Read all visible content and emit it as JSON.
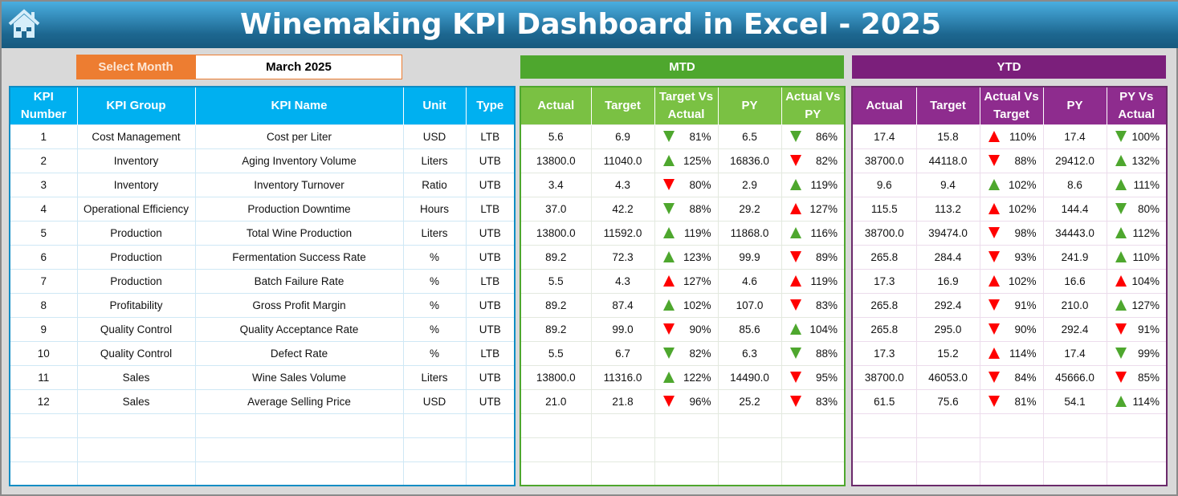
{
  "header": {
    "title": "Winemaking KPI Dashboard in Excel - 2025",
    "home_icon": "home-icon"
  },
  "selector": {
    "label": "Select Month",
    "value": "March 2025",
    "accent": "#ed7d31"
  },
  "sections": {
    "mtd": "MTD",
    "ytd": "YTD",
    "mtd_color": "#4ea72e",
    "ytd_color": "#7b1f7b",
    "kpi_color": "#00b0f0"
  },
  "columns": {
    "kpi": [
      "KPI Number",
      "KPI Group",
      "KPI Name",
      "Unit",
      "Type"
    ],
    "mtd": [
      "Actual",
      "Target",
      "Target Vs Actual",
      "PY",
      "Actual Vs PY"
    ],
    "ytd": [
      "Actual",
      "Target",
      "Actual Vs Target",
      "PY",
      "PY Vs Actual"
    ]
  },
  "colors": {
    "green": "#4ea72e",
    "red": "#ff0000"
  },
  "rows": [
    {
      "kpi": [
        "1",
        "Cost Management",
        "Cost per Liter",
        "USD",
        "LTB"
      ],
      "mtd": [
        "5.6",
        "6.9",
        {
          "dir": "down",
          "color": "green",
          "value": "81%"
        },
        "6.5",
        {
          "dir": "down",
          "color": "green",
          "value": "86%"
        }
      ],
      "ytd": [
        "17.4",
        "15.8",
        {
          "dir": "up",
          "color": "red",
          "value": "110%"
        },
        "17.4",
        {
          "dir": "down",
          "color": "green",
          "value": "100%"
        }
      ]
    },
    {
      "kpi": [
        "2",
        "Inventory",
        "Aging Inventory Volume",
        "Liters",
        "UTB"
      ],
      "mtd": [
        "13800.0",
        "11040.0",
        {
          "dir": "up",
          "color": "green",
          "value": "125%"
        },
        "16836.0",
        {
          "dir": "down",
          "color": "red",
          "value": "82%"
        }
      ],
      "ytd": [
        "38700.0",
        "44118.0",
        {
          "dir": "down",
          "color": "red",
          "value": "88%"
        },
        "29412.0",
        {
          "dir": "up",
          "color": "green",
          "value": "132%"
        }
      ]
    },
    {
      "kpi": [
        "3",
        "Inventory",
        "Inventory Turnover",
        "Ratio",
        "UTB"
      ],
      "mtd": [
        "3.4",
        "4.3",
        {
          "dir": "down",
          "color": "red",
          "value": "80%"
        },
        "2.9",
        {
          "dir": "up",
          "color": "green",
          "value": "119%"
        }
      ],
      "ytd": [
        "9.6",
        "9.4",
        {
          "dir": "up",
          "color": "green",
          "value": "102%"
        },
        "8.6",
        {
          "dir": "up",
          "color": "green",
          "value": "111%"
        }
      ]
    },
    {
      "kpi": [
        "4",
        "Operational Efficiency",
        "Production Downtime",
        "Hours",
        "LTB"
      ],
      "mtd": [
        "37.0",
        "42.2",
        {
          "dir": "down",
          "color": "green",
          "value": "88%"
        },
        "29.2",
        {
          "dir": "up",
          "color": "red",
          "value": "127%"
        }
      ],
      "ytd": [
        "115.5",
        "113.2",
        {
          "dir": "up",
          "color": "red",
          "value": "102%"
        },
        "144.4",
        {
          "dir": "down",
          "color": "green",
          "value": "80%"
        }
      ]
    },
    {
      "kpi": [
        "5",
        "Production",
        "Total Wine Production",
        "Liters",
        "UTB"
      ],
      "mtd": [
        "13800.0",
        "11592.0",
        {
          "dir": "up",
          "color": "green",
          "value": "119%"
        },
        "11868.0",
        {
          "dir": "up",
          "color": "green",
          "value": "116%"
        }
      ],
      "ytd": [
        "38700.0",
        "39474.0",
        {
          "dir": "down",
          "color": "red",
          "value": "98%"
        },
        "34443.0",
        {
          "dir": "up",
          "color": "green",
          "value": "112%"
        }
      ]
    },
    {
      "kpi": [
        "6",
        "Production",
        "Fermentation Success Rate",
        "%",
        "UTB"
      ],
      "mtd": [
        "89.2",
        "72.3",
        {
          "dir": "up",
          "color": "green",
          "value": "123%"
        },
        "99.9",
        {
          "dir": "down",
          "color": "red",
          "value": "89%"
        }
      ],
      "ytd": [
        "265.8",
        "284.4",
        {
          "dir": "down",
          "color": "red",
          "value": "93%"
        },
        "241.9",
        {
          "dir": "up",
          "color": "green",
          "value": "110%"
        }
      ]
    },
    {
      "kpi": [
        "7",
        "Production",
        "Batch Failure Rate",
        "%",
        "LTB"
      ],
      "mtd": [
        "5.5",
        "4.3",
        {
          "dir": "up",
          "color": "red",
          "value": "127%"
        },
        "4.6",
        {
          "dir": "up",
          "color": "red",
          "value": "119%"
        }
      ],
      "ytd": [
        "17.3",
        "16.9",
        {
          "dir": "up",
          "color": "red",
          "value": "102%"
        },
        "16.6",
        {
          "dir": "up",
          "color": "red",
          "value": "104%"
        }
      ]
    },
    {
      "kpi": [
        "8",
        "Profitability",
        "Gross Profit Margin",
        "%",
        "UTB"
      ],
      "mtd": [
        "89.2",
        "87.4",
        {
          "dir": "up",
          "color": "green",
          "value": "102%"
        },
        "107.0",
        {
          "dir": "down",
          "color": "red",
          "value": "83%"
        }
      ],
      "ytd": [
        "265.8",
        "292.4",
        {
          "dir": "down",
          "color": "red",
          "value": "91%"
        },
        "210.0",
        {
          "dir": "up",
          "color": "green",
          "value": "127%"
        }
      ]
    },
    {
      "kpi": [
        "9",
        "Quality Control",
        "Quality Acceptance Rate",
        "%",
        "UTB"
      ],
      "mtd": [
        "89.2",
        "99.0",
        {
          "dir": "down",
          "color": "red",
          "value": "90%"
        },
        "85.6",
        {
          "dir": "up",
          "color": "green",
          "value": "104%"
        }
      ],
      "ytd": [
        "265.8",
        "295.0",
        {
          "dir": "down",
          "color": "red",
          "value": "90%"
        },
        "292.4",
        {
          "dir": "down",
          "color": "red",
          "value": "91%"
        }
      ]
    },
    {
      "kpi": [
        "10",
        "Quality Control",
        "Defect Rate",
        "%",
        "LTB"
      ],
      "mtd": [
        "5.5",
        "6.7",
        {
          "dir": "down",
          "color": "green",
          "value": "82%"
        },
        "6.3",
        {
          "dir": "down",
          "color": "green",
          "value": "88%"
        }
      ],
      "ytd": [
        "17.3",
        "15.2",
        {
          "dir": "up",
          "color": "red",
          "value": "114%"
        },
        "17.4",
        {
          "dir": "down",
          "color": "green",
          "value": "99%"
        }
      ]
    },
    {
      "kpi": [
        "11",
        "Sales",
        "Wine Sales Volume",
        "Liters",
        "UTB"
      ],
      "mtd": [
        "13800.0",
        "11316.0",
        {
          "dir": "up",
          "color": "green",
          "value": "122%"
        },
        "14490.0",
        {
          "dir": "down",
          "color": "red",
          "value": "95%"
        }
      ],
      "ytd": [
        "38700.0",
        "46053.0",
        {
          "dir": "down",
          "color": "red",
          "value": "84%"
        },
        "45666.0",
        {
          "dir": "down",
          "color": "red",
          "value": "85%"
        }
      ]
    },
    {
      "kpi": [
        "12",
        "Sales",
        "Average Selling Price",
        "USD",
        "UTB"
      ],
      "mtd": [
        "21.0",
        "21.8",
        {
          "dir": "down",
          "color": "red",
          "value": "96%"
        },
        "25.2",
        {
          "dir": "down",
          "color": "red",
          "value": "83%"
        }
      ],
      "ytd": [
        "61.5",
        "75.6",
        {
          "dir": "down",
          "color": "red",
          "value": "81%"
        },
        "54.1",
        {
          "dir": "up",
          "color": "green",
          "value": "114%"
        }
      ]
    }
  ]
}
